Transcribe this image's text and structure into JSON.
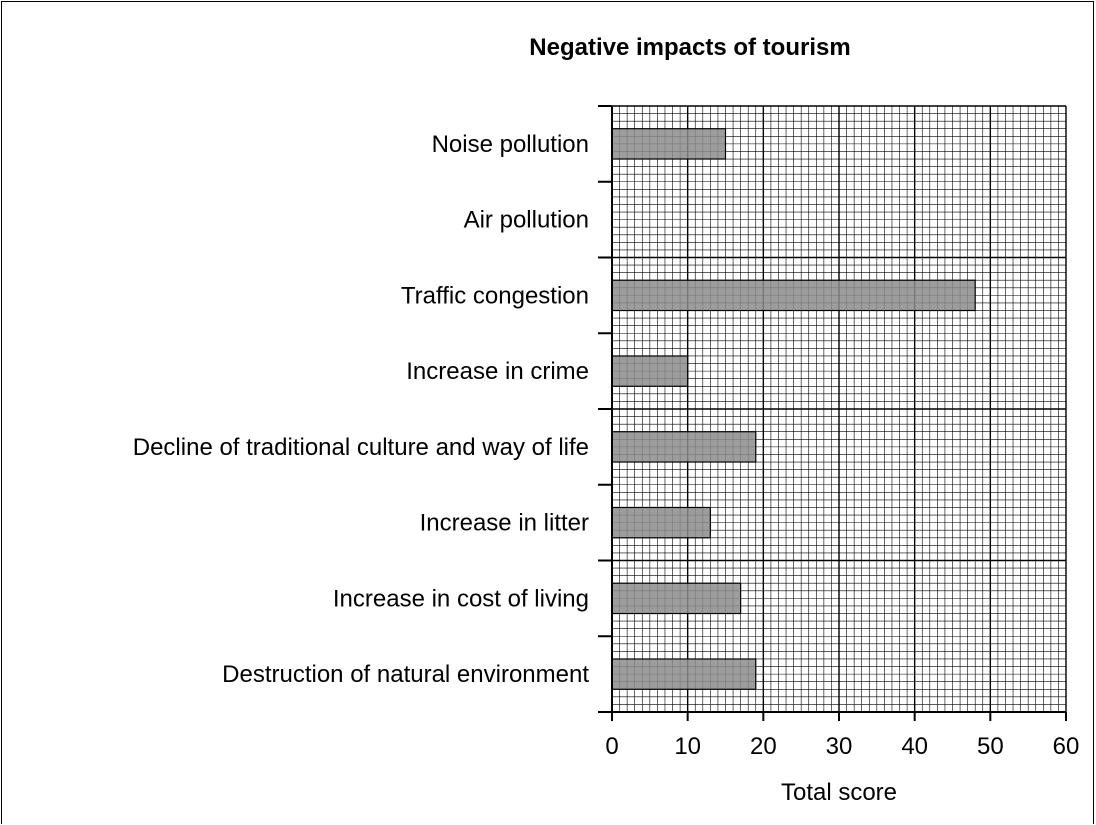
{
  "chart_data": {
    "type": "bar",
    "orientation": "horizontal",
    "title": "Negative impacts of tourism",
    "xlabel": "Total score",
    "ylabel": "",
    "categories": [
      "Noise pollution",
      "Air pollution",
      "Traffic congestion",
      "Increase in crime",
      "Decline of traditional culture and way of life",
      "Increase in litter",
      "Increase in cost of living",
      "Destruction of natural environment"
    ],
    "values": [
      15,
      0,
      48,
      10,
      19,
      13,
      17,
      19
    ],
    "xlim": [
      0,
      60
    ],
    "xticks": [
      "0",
      "10",
      "20",
      "30",
      "40",
      "50",
      "60"
    ],
    "grid": true,
    "bar_color": "#8c8c8c"
  }
}
